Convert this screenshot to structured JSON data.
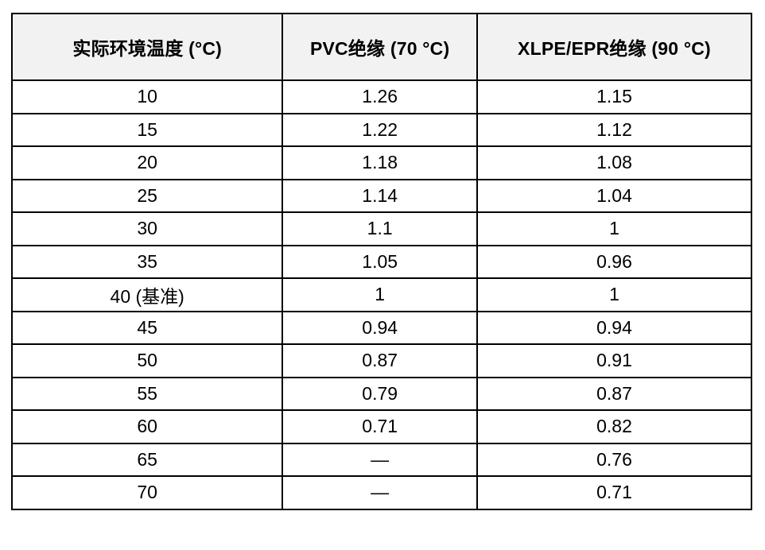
{
  "chart_data": {
    "type": "table",
    "columns": [
      "实际环境温度 (°C)",
      "PVC绝缘 (70 °C)",
      "XLPE/EPR绝缘 (90 °C)"
    ],
    "rows": [
      [
        "10",
        "1.26",
        "1.15"
      ],
      [
        "15",
        "1.22",
        "1.12"
      ],
      [
        "20",
        "1.18",
        "1.08"
      ],
      [
        "25",
        "1.14",
        "1.04"
      ],
      [
        "30",
        "1.1",
        "1"
      ],
      [
        "35",
        "1.05",
        "0.96"
      ],
      [
        "40 (基准)",
        "1",
        "1"
      ],
      [
        "45",
        "0.94",
        "0.94"
      ],
      [
        "50",
        "0.87",
        "0.91"
      ],
      [
        "55",
        "0.79",
        "0.87"
      ],
      [
        "60",
        "0.71",
        "0.82"
      ],
      [
        "65",
        "—",
        "0.76"
      ],
      [
        "70",
        "—",
        "0.71"
      ]
    ],
    "missing_value_marker": "—",
    "baseline_row_label": "40 (基准)",
    "layout": {
      "grid": "on",
      "header_style": "bold"
    },
    "colors": {
      "border": "#000000",
      "header_bg": "#f2f2f2",
      "body_bg": "#ffffff",
      "text": "#000000"
    }
  }
}
